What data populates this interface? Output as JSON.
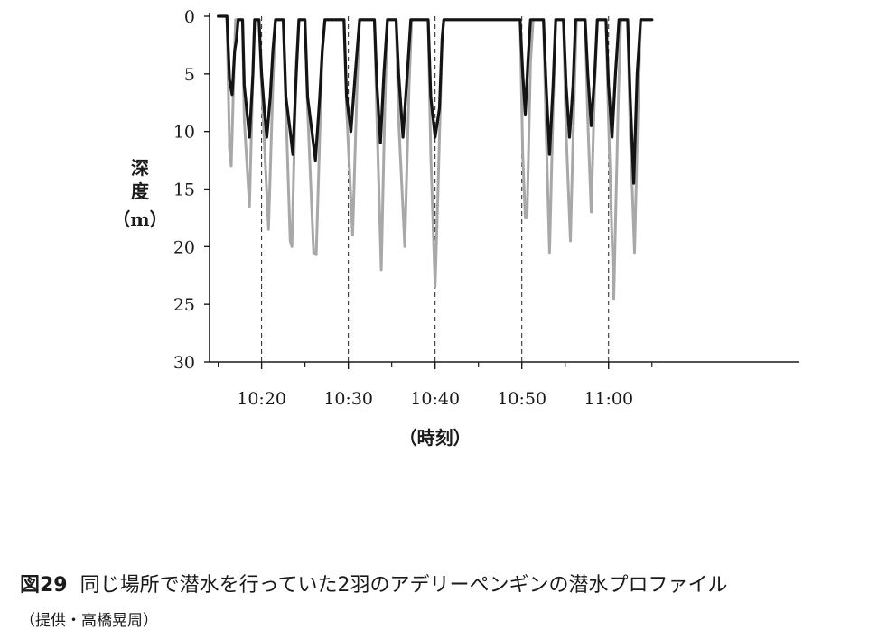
{
  "chart_data": {
    "type": "line",
    "title": "",
    "xlabel": "（時刻）",
    "ylabel": "深度（m）",
    "ylabel_parts": [
      "深",
      "度",
      "（m）"
    ],
    "x_unit": "minutes",
    "x_ticks": [
      {
        "value": "10:20",
        "label": "10:20"
      },
      {
        "value": "10:30",
        "label": "10:30"
      },
      {
        "value": "10:40",
        "label": "10:40"
      },
      {
        "value": "10:50",
        "label": "10:50"
      },
      {
        "value": "11:00",
        "label": "11:00"
      }
    ],
    "x_minor_ticks": [
      "10:15",
      "10:25",
      "10:35",
      "10:45",
      "10:55",
      "11:05"
    ],
    "xlim": [
      "10:14",
      "11:22"
    ],
    "ylim": [
      30,
      0
    ],
    "y_inverted": true,
    "y_ticks": [
      0,
      5,
      10,
      15,
      20,
      25,
      30
    ],
    "reference_lines": {
      "style": "dashed vertical",
      "x": [
        "10:20",
        "10:30",
        "10:40",
        "10:50",
        "11:00"
      ]
    },
    "grid": false,
    "legend": "none",
    "series": [
      {
        "color": "#a8a8a8",
        "points": [
          [
            "10:15",
            0
          ],
          [
            "10:16",
            0
          ],
          [
            "10:16.3",
            11.5
          ],
          [
            "10:16.5",
            13
          ],
          [
            "10:16.8",
            5
          ],
          [
            "10:17",
            0.3
          ],
          [
            "10:17.8",
            0.3
          ],
          [
            "10:18",
            9
          ],
          [
            "10:18.6",
            16.5
          ],
          [
            "10:19",
            5
          ],
          [
            "10:19.2",
            0.3
          ],
          [
            "10:19.7",
            0.3
          ],
          [
            "10:20",
            6
          ],
          [
            "10:20.8",
            18.5
          ],
          [
            "10:21.3",
            6
          ],
          [
            "10:21.6",
            0.3
          ],
          [
            "10:22.5",
            0.3
          ],
          [
            "10:22.8",
            8
          ],
          [
            "10:23.3",
            19.5
          ],
          [
            "10:23.5",
            20
          ],
          [
            "10:24",
            4
          ],
          [
            "10:24.3",
            0.3
          ],
          [
            "10:25",
            0.3
          ],
          [
            "10:25.3",
            8
          ],
          [
            "10:26",
            20.5
          ],
          [
            "10:26.3",
            20.7
          ],
          [
            "10:27",
            3
          ],
          [
            "10:27.3",
            0.3
          ],
          [
            "10:29.5",
            0.3
          ],
          [
            "10:29.8",
            8
          ],
          [
            "10:30.5",
            19
          ],
          [
            "10:31",
            6
          ],
          [
            "10:31.3",
            0.3
          ],
          [
            "10:33",
            0.3
          ],
          [
            "10:33.3",
            9
          ],
          [
            "10:33.8",
            22
          ],
          [
            "10:34.2",
            8
          ],
          [
            "10:34.5",
            0.3
          ],
          [
            "10:35.5",
            0.3
          ],
          [
            "10:35.8",
            9
          ],
          [
            "10:36.5",
            20
          ],
          [
            "10:37",
            6
          ],
          [
            "10:37.3",
            0.3
          ],
          [
            "10:39.2",
            0.3
          ],
          [
            "10:39.5",
            12
          ],
          [
            "10:40",
            23.5
          ],
          [
            "10:40.3",
            16
          ],
          [
            "10:40.8",
            2
          ],
          [
            "10:41",
            0.3
          ],
          [
            "10:49.8",
            0.3
          ],
          [
            "10:50.1",
            12
          ],
          [
            "10:50.4",
            17.5
          ],
          [
            "10:50.6",
            17.5
          ],
          [
            "10:51",
            4
          ],
          [
            "10:51.3",
            0.3
          ],
          [
            "10:52.5",
            0.3
          ],
          [
            "10:52.8",
            10
          ],
          [
            "10:53.2",
            20.5
          ],
          [
            "10:53.6",
            8
          ],
          [
            "10:53.9",
            0.3
          ],
          [
            "10:54.8",
            0.3
          ],
          [
            "10:55.1",
            10
          ],
          [
            "10:55.6",
            19.5
          ],
          [
            "10:56",
            8
          ],
          [
            "10:56.3",
            0.3
          ],
          [
            "10:57.3",
            0.3
          ],
          [
            "10:57.6",
            9
          ],
          [
            "10:58",
            17
          ],
          [
            "10:58.4",
            6
          ],
          [
            "10:58.7",
            0.3
          ],
          [
            "10:59.7",
            0.3
          ],
          [
            "11:00",
            9
          ],
          [
            "11:00.6",
            24.5
          ],
          [
            "11:01.1",
            8
          ],
          [
            "11:01.4",
            0.3
          ],
          [
            "11:02.2",
            0.3
          ],
          [
            "11:02.5",
            10
          ],
          [
            "11:03",
            20.5
          ],
          [
            "11:03.4",
            8
          ],
          [
            "11:03.7",
            0.3
          ],
          [
            "11:05",
            0.3
          ]
        ]
      },
      {
        "color": "#141414",
        "points": [
          [
            "10:15",
            0
          ],
          [
            "10:16",
            0
          ],
          [
            "10:16.3",
            5.5
          ],
          [
            "10:16.6",
            6.8
          ],
          [
            "10:16.9",
            3
          ],
          [
            "10:17.1",
            2
          ],
          [
            "10:17.3",
            0.3
          ],
          [
            "10:17.8",
            0.3
          ],
          [
            "10:18",
            6
          ],
          [
            "10:18.6",
            10.5
          ],
          [
            "10:19",
            5
          ],
          [
            "10:19.2",
            0.3
          ],
          [
            "10:19.7",
            0.3
          ],
          [
            "10:20",
            5
          ],
          [
            "10:20.3",
            8
          ],
          [
            "10:20.6",
            10.5
          ],
          [
            "10:21",
            7
          ],
          [
            "10:21.3",
            3
          ],
          [
            "10:21.6",
            0.3
          ],
          [
            "10:22.5",
            0.3
          ],
          [
            "10:22.8",
            7
          ],
          [
            "10:23.3",
            10
          ],
          [
            "10:23.6",
            12
          ],
          [
            "10:24",
            5
          ],
          [
            "10:24.3",
            0.3
          ],
          [
            "10:25",
            0.3
          ],
          [
            "10:25.3",
            7
          ],
          [
            "10:25.8",
            10
          ],
          [
            "10:26.2",
            12.5
          ],
          [
            "10:26.7",
            7
          ],
          [
            "10:27",
            3
          ],
          [
            "10:27.3",
            0.3
          ],
          [
            "10:29.5",
            0.3
          ],
          [
            "10:29.8",
            7
          ],
          [
            "10:30.3",
            10
          ],
          [
            "10:30.8",
            5
          ],
          [
            "10:31.3",
            0.3
          ],
          [
            "10:33",
            0.3
          ],
          [
            "10:33.3",
            6
          ],
          [
            "10:33.7",
            11
          ],
          [
            "10:34.1",
            5
          ],
          [
            "10:34.5",
            0.3
          ],
          [
            "10:35.5",
            0.3
          ],
          [
            "10:35.8",
            5
          ],
          [
            "10:36.3",
            10.5
          ],
          [
            "10:36.8",
            5
          ],
          [
            "10:37.2",
            0.3
          ],
          [
            "10:39.2",
            0.3
          ],
          [
            "10:39.5",
            7
          ],
          [
            "10:40",
            10.5
          ],
          [
            "10:40.5",
            8
          ],
          [
            "10:40.8",
            2
          ],
          [
            "10:41",
            0.3
          ],
          [
            "10:49.8",
            0.3
          ],
          [
            "10:50.1",
            5
          ],
          [
            "10:50.4",
            8.5
          ],
          [
            "10:50.7",
            4
          ],
          [
            "10:51",
            0.3
          ],
          [
            "10:52.5",
            0.3
          ],
          [
            "10:52.8",
            6
          ],
          [
            "10:53.2",
            12
          ],
          [
            "10:53.6",
            6
          ],
          [
            "10:53.9",
            0.3
          ],
          [
            "10:54.8",
            0.3
          ],
          [
            "10:55.1",
            6
          ],
          [
            "10:55.5",
            10.5
          ],
          [
            "10:55.9",
            6
          ],
          [
            "10:56.2",
            0.3
          ],
          [
            "10:57.3",
            0.3
          ],
          [
            "10:57.6",
            5
          ],
          [
            "10:58",
            9.5
          ],
          [
            "10:58.4",
            5
          ],
          [
            "10:58.7",
            0.3
          ],
          [
            "10:59.7",
            0.3
          ],
          [
            "11:00",
            6
          ],
          [
            "11:00.4",
            10.5
          ],
          [
            "11:00.8",
            5
          ],
          [
            "11:01.2",
            0.3
          ],
          [
            "11:02.2",
            0.3
          ],
          [
            "11:02.5",
            7
          ],
          [
            "11:02.9",
            14.5
          ],
          [
            "11:03.3",
            5
          ],
          [
            "11:03.7",
            0.3
          ],
          [
            "11:05",
            0.3
          ]
        ]
      }
    ]
  },
  "caption": {
    "figure_number": "図29",
    "text": "同じ場所で潜水を行っていた2羽のアデリーペンギンの潜水プロファイル",
    "credit": "（提供・高橋晃周）"
  }
}
